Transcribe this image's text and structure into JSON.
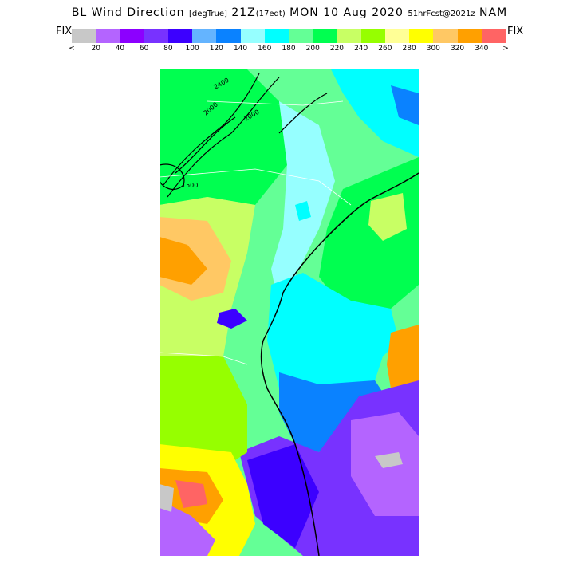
{
  "header": {
    "title_main": "BL Wind Direction",
    "title_units": "[degTrue]",
    "title_valid": "21Z",
    "title_local": "(17edt)",
    "title_date": "MON 10 Aug 2020",
    "title_fcst": "51hrFcst@2021z",
    "title_model": "NAM"
  },
  "legend": {
    "left_label": "FIX",
    "right_label": "FIX",
    "colors": [
      "#c8c8c8",
      "#b464ff",
      "#8c00ff",
      "#7832ff",
      "#3c00ff",
      "#64b4ff",
      "#0a82ff",
      "#96ffff",
      "#00ffff",
      "#64ff96",
      "#00ff50",
      "#c8ff64",
      "#96ff00",
      "#ffff96",
      "#ffff00",
      "#ffc864",
      "#ffa000",
      "#ff6464"
    ],
    "ticks": [
      "<",
      "20",
      "40",
      "60",
      "80",
      "100",
      "120",
      "140",
      "160",
      "180",
      "200",
      "220",
      "240",
      "260",
      "280",
      "300",
      "320",
      "340",
      ">"
    ]
  },
  "map": {
    "contour_labels": [
      "2400",
      "2000",
      "2000",
      "1500"
    ]
  }
}
